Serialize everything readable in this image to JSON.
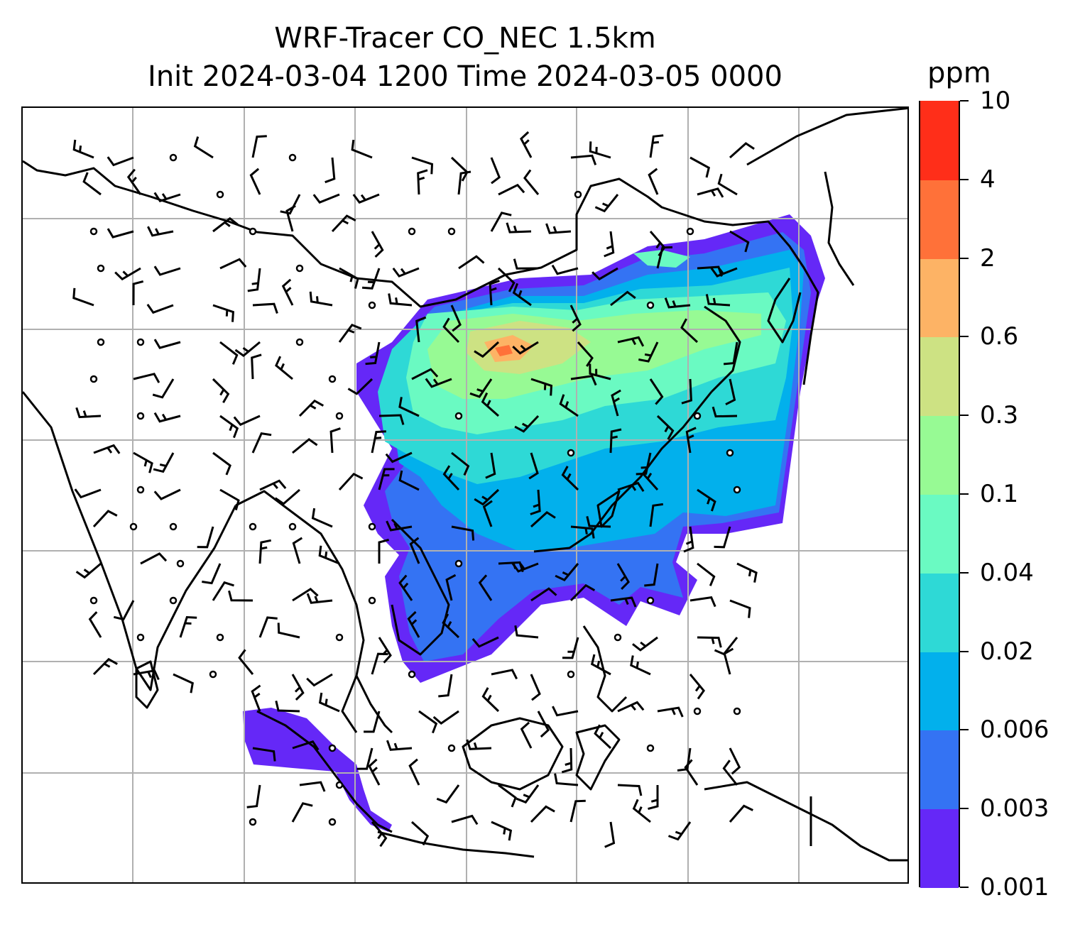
{
  "title": {
    "line1": "WRF-Tracer CO_NEC 1.5km",
    "line2": "Init 2024-03-04 1200 Time 2024-03-05 0000"
  },
  "colorbar": {
    "unit": "ppm",
    "levels": [
      {
        "label": "0.001",
        "color": "#6528f7"
      },
      {
        "label": "0.003",
        "color": "#3473f3"
      },
      {
        "label": "0.006",
        "color": "#02b0ec"
      },
      {
        "label": "0.02",
        "color": "#2ed9d6"
      },
      {
        "label": "0.04",
        "color": "#6afac2"
      },
      {
        "label": "0.1",
        "color": "#97fa94"
      },
      {
        "label": "0.3",
        "color": "#cde283"
      },
      {
        "label": "0.6",
        "color": "#fdb365"
      },
      {
        "label": "2",
        "color": "#ff7139"
      },
      {
        "label": "4",
        "color": "#ff2e19"
      },
      {
        "label": "10",
        "color": ""
      }
    ]
  },
  "map": {
    "gridlines": true,
    "coastline_color": "#000000",
    "grid_color": "#b0b0b0",
    "wind_barbs": true
  }
}
